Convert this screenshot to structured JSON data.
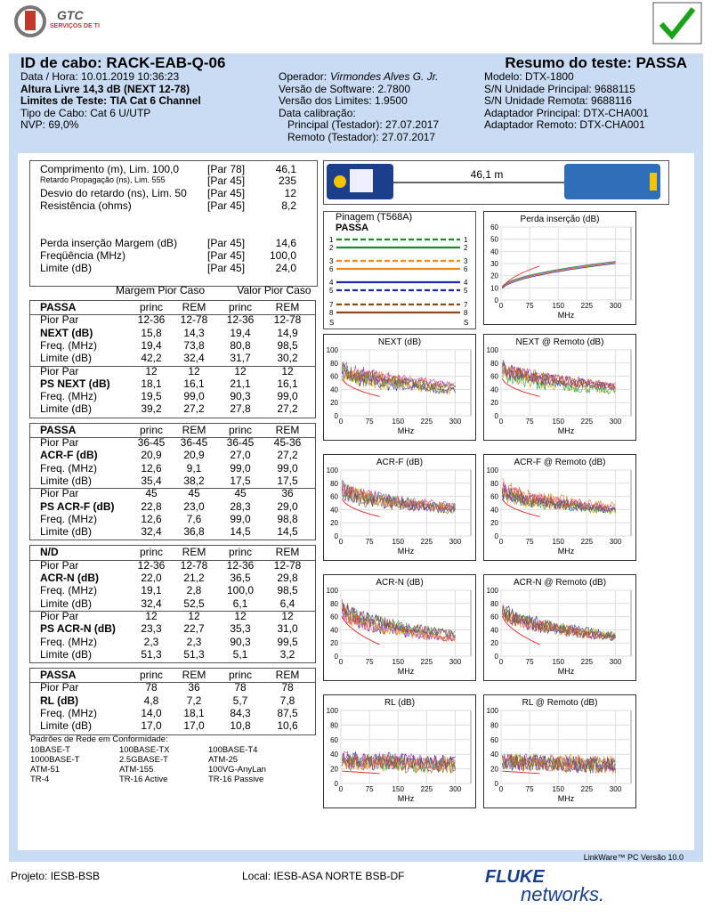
{
  "logo": {
    "name": "GTC",
    "tagline": "SERVIÇOS DE TI"
  },
  "header": {
    "cable_id": "ID de cabo: RACK-EAB-Q-06",
    "summary": "Resumo do teste: PASSA",
    "col1": [
      "Data / Hora: 10.01.2019  10:36:23",
      "Altura Livre 14,3 dB (NEXT 12-78)",
      "Limites de Teste: TIA Cat 6 Channel",
      "Tipo de Cabo: Cat 6 U/UTP",
      "NVP: 69,0%"
    ],
    "operator_label": "Operador:",
    "operator": "Virmondes Alves G. Jr.",
    "col2": [
      "Versão de Software: 2.7800",
      "Versão dos Limites: 1.9500",
      "Data calibração:",
      "Principal (Testador): 27.07.2017",
      "Remoto (Testador): 27.07.2017"
    ],
    "col3": [
      "Modelo: DTX-1800",
      "S/N Unidade Principal: 9688115",
      "S/N Unidade Remota: 9688116",
      "Adaptador Principal: DTX-CHA001",
      "Adaptador Remoto: DTX-CHA001"
    ]
  },
  "length_rows": [
    [
      "Comprimento (m), Lim. 100,0",
      "[Par 78]",
      "46,1"
    ],
    [
      "Retardo Propagação (ns), Lim. 555",
      "[Par 45]",
      "235"
    ],
    [
      "Desvio do retardo (ns), Lim. 50",
      "[Par 45]",
      "12"
    ],
    [
      "Resistência (ohms)",
      "[Par 45]",
      "8,2"
    ]
  ],
  "insertion_rows": [
    [
      "Perda inserção Margem (dB)",
      "[Par 45]",
      "14,6"
    ],
    [
      "Freqüência (MHz)",
      "[Par 45]",
      "100,0"
    ],
    [
      "Limite (dB)",
      "[Par 45]",
      "24,0"
    ]
  ],
  "margin_headers": [
    "Margem Pior Caso",
    "Valor Pior Caso"
  ],
  "sections": [
    {
      "rows": [
        [
          "PASSA",
          "princ",
          "REM",
          "princ",
          "REM"
        ],
        [
          "Pior Par",
          "12-36",
          "12-78",
          "12-36",
          "12-78"
        ],
        [
          "NEXT (dB)",
          "15,8",
          "14,3",
          "19,4",
          "14,9"
        ],
        [
          "Freq. (MHz)",
          "19,4",
          "73,8",
          "80,8",
          "98,5"
        ],
        [
          "Limite (dB)",
          "42,2",
          "32,4",
          "31,7",
          "30,2"
        ],
        [
          "Pior Par",
          "12",
          "12",
          "12",
          "12"
        ],
        [
          "PS NEXT (dB)",
          "18,1",
          "16,1",
          "21,1",
          "16,1"
        ],
        [
          "Freq. (MHz)",
          "19,5",
          "99,0",
          "90,3",
          "99,0"
        ],
        [
          "Limite (dB)",
          "39,2",
          "27,2",
          "27,8",
          "27,2"
        ]
      ]
    },
    {
      "rows": [
        [
          "PASSA",
          "princ",
          "REM",
          "princ",
          "REM"
        ],
        [
          "Pior Par",
          "36-45",
          "36-45",
          "36-45",
          "45-36"
        ],
        [
          "ACR-F (dB)",
          "20,9",
          "20,9",
          "27,0",
          "27,2"
        ],
        [
          "Freq. (MHz)",
          "12,6",
          "9,1",
          "99,0",
          "99,0"
        ],
        [
          "Limite (dB)",
          "35,4",
          "38,2",
          "17,5",
          "17,5"
        ],
        [
          "Pior Par",
          "45",
          "45",
          "45",
          "36"
        ],
        [
          "PS ACR-F (dB)",
          "22,8",
          "23,0",
          "28,3",
          "29,0"
        ],
        [
          "Freq. (MHz)",
          "12,6",
          "7,6",
          "99,0",
          "98,8"
        ],
        [
          "Limite (dB)",
          "32,4",
          "36,8",
          "14,5",
          "14,5"
        ]
      ]
    },
    {
      "rows": [
        [
          "N/D",
          "princ",
          "REM",
          "princ",
          "REM"
        ],
        [
          "Pior Par",
          "12-36",
          "12-78",
          "12-36",
          "12-78"
        ],
        [
          "ACR-N (dB)",
          "22,0",
          "21,2",
          "36,5",
          "29,8"
        ],
        [
          "Freq. (MHz)",
          "19,1",
          "2,8",
          "100,0",
          "98,5"
        ],
        [
          "Limite (dB)",
          "32,4",
          "52,5",
          "6,1",
          "6,4"
        ],
        [
          "Pior Par",
          "12",
          "12",
          "12",
          "12"
        ],
        [
          "PS ACR-N (dB)",
          "23,3",
          "22,7",
          "35,3",
          "31,0"
        ],
        [
          "Freq. (MHz)",
          "2,3",
          "2,3",
          "90,3",
          "99,5"
        ],
        [
          "Limite (dB)",
          "51,3",
          "51,3",
          "5,1",
          "3,2"
        ]
      ]
    },
    {
      "rows": [
        [
          "PASSA",
          "princ",
          "REM",
          "princ",
          "REM"
        ],
        [
          "Pior Par",
          "78",
          "36",
          "78",
          "78"
        ],
        [
          "RL (dB)",
          "4,8",
          "7,2",
          "5,7",
          "7,8"
        ],
        [
          "Freq. (MHz)",
          "14,0",
          "18,1",
          "84,3",
          "87,5"
        ],
        [
          "Limite (dB)",
          "17,0",
          "17,0",
          "10,8",
          "10,6"
        ]
      ]
    }
  ],
  "standards": {
    "title": "Padrões de Rede em Conformidade:",
    "items": [
      "10BASE-T",
      "100BASE-TX",
      "100BASE-T4",
      "1000BASE-T",
      "2.5GBASE-T",
      "ATM-25",
      "ATM-51",
      "ATM-155",
      "100VG-AnyLan",
      "TR-4",
      "TR-16 Active",
      "TR-16 Passive"
    ]
  },
  "cable_length": "46,1 m",
  "wiremap": {
    "title": "Pinagem (T568A)",
    "status": "PASSA",
    "pins": [
      "1",
      "2",
      "3",
      "6",
      "4",
      "5",
      "7",
      "8"
    ],
    "shield": "S"
  },
  "charts": [
    {
      "title": "Perda inserção (dB)",
      "yticks": [
        0,
        10,
        20,
        30,
        40,
        50,
        60
      ],
      "xticks": [
        0,
        75,
        150,
        225,
        300
      ],
      "xlabel": "MHz"
    },
    {
      "title": "NEXT (dB)",
      "yticks": [
        0,
        20,
        40,
        60,
        80,
        100
      ],
      "xticks": [
        0,
        75,
        150,
        225,
        300
      ],
      "xlabel": "MHz"
    },
    {
      "title": "NEXT @ Remoto (dB)",
      "yticks": [
        0,
        20,
        40,
        60,
        80,
        100
      ],
      "xticks": [
        0,
        75,
        150,
        225,
        300
      ],
      "xlabel": "MHz"
    },
    {
      "title": "ACR-F (dB)",
      "yticks": [
        0,
        20,
        40,
        60,
        80,
        100
      ],
      "xticks": [
        0,
        75,
        150,
        225,
        300
      ],
      "xlabel": "MHz"
    },
    {
      "title": "ACR-F @ Remoto (dB)",
      "yticks": [
        0,
        20,
        40,
        60,
        80,
        100
      ],
      "xticks": [
        0,
        75,
        150,
        225,
        300
      ],
      "xlabel": "MHz"
    },
    {
      "title": "ACR-N (dB)",
      "yticks": [
        0,
        20,
        40,
        60,
        80,
        100
      ],
      "xticks": [
        0,
        75,
        150,
        225,
        300
      ],
      "xlabel": "MHz"
    },
    {
      "title": "ACR-N @ Remoto (dB)",
      "yticks": [
        0,
        20,
        40,
        60,
        80,
        100
      ],
      "xticks": [
        0,
        75,
        150,
        225,
        300
      ],
      "xlabel": "MHz"
    },
    {
      "title": "RL (dB)",
      "yticks": [
        0,
        20,
        40,
        60,
        80,
        100
      ],
      "xticks": [
        0,
        75,
        150,
        225,
        300
      ],
      "xlabel": "MHz"
    },
    {
      "title": "RL @ Remoto (dB)",
      "yticks": [
        0,
        20,
        40,
        60,
        80,
        100
      ],
      "xticks": [
        0,
        75,
        150,
        225,
        300
      ],
      "xlabel": "MHz"
    }
  ],
  "footer": {
    "project": "Projeto: IESB-BSB",
    "location": "Local: IESB-ASA NORTE BSB-DF",
    "version": "LinkWare™ PC Versão 10.0",
    "brand": "FLUKE",
    "brand2": "networks."
  }
}
